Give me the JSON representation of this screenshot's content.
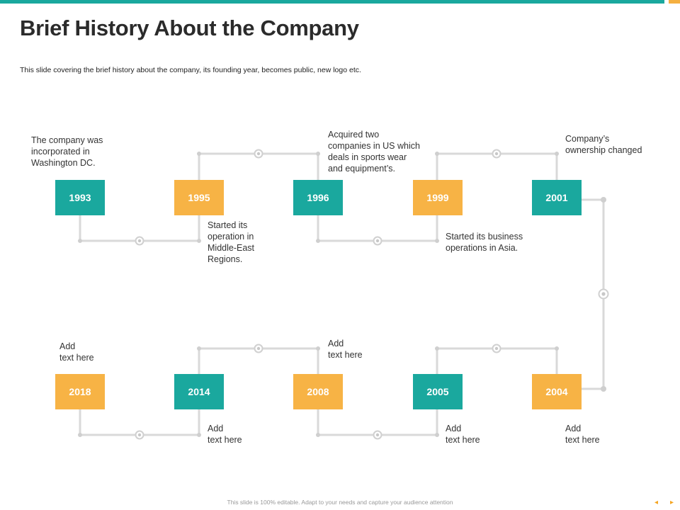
{
  "header": {
    "title": "Brief History About the Company",
    "subtitle": "This slide covering the brief history about the company, its founding year, becomes public, new logo etc."
  },
  "timeline": {
    "row1": [
      {
        "year": "1993",
        "text": "The company was\nincorporated in\nWashington DC."
      },
      {
        "year": "1995",
        "text": "Started its\noperation in\nMiddle-East\nRegions."
      },
      {
        "year": "1996",
        "text": "Acquired two\ncompanies in US which\ndeals in sports wear\nand equipment’s."
      },
      {
        "year": "1999",
        "text": "Started its business\noperations in Asia."
      },
      {
        "year": "2001",
        "text": "Company’s\nownership changed"
      }
    ],
    "row2": [
      {
        "year": "2018",
        "text": "Add\ntext here"
      },
      {
        "year": "2014",
        "text": "Add\ntext here"
      },
      {
        "year": "2008",
        "text": "Add\ntext here"
      },
      {
        "year": "2005",
        "text": "Add\ntext here"
      },
      {
        "year": "2004",
        "text": "Add\ntext here"
      }
    ]
  },
  "footer": {
    "note": "This slide is 100% editable. Adapt to your needs and capture your audience attention",
    "prev_icon": "arrow-left-icon",
    "next_icon": "arrow-right-icon",
    "prev_glyph": "◂",
    "next_glyph": "▸"
  },
  "colors": {
    "teal": "#1aa89e",
    "orange": "#f7b345",
    "line": "#d9d9d9"
  }
}
